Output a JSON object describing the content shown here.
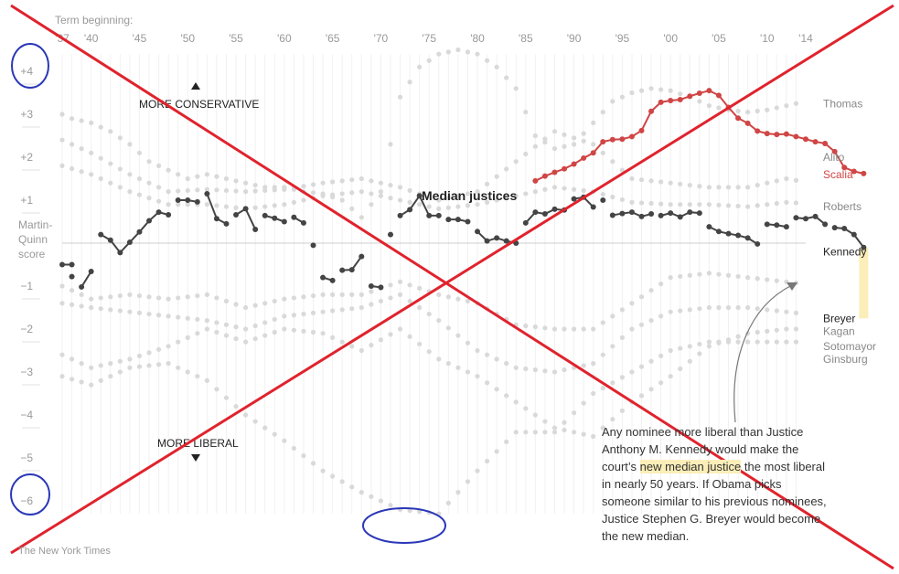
{
  "chart_data": {
    "type": "scatter",
    "title": "",
    "xlabel": "Term beginning:",
    "ylabel": "Martin-Quinn score",
    "ylabel_lines": [
      "Martin-",
      "Quinn",
      "score"
    ],
    "x_ticks": [
      "'37",
      "'40",
      "'45",
      "'50",
      "'55",
      "'60",
      "'65",
      "'70",
      "'75",
      "'80",
      "'85",
      "'90",
      "'95",
      "'00",
      "'05",
      "'10",
      "'14"
    ],
    "y_ticks": [
      {
        "value": 4,
        "label": "+4"
      },
      {
        "value": 3,
        "label": "+3"
      },
      {
        "value": 2,
        "label": "+2"
      },
      {
        "value": 1,
        "label": "+1"
      },
      {
        "value": -1,
        "label": "−1"
      },
      {
        "value": -2,
        "label": "−2"
      },
      {
        "value": -3,
        "label": "−3"
      },
      {
        "value": -4,
        "label": "−4"
      },
      {
        "value": -5,
        "label": "−5"
      },
      {
        "value": -6,
        "label": "−6"
      }
    ],
    "xlim": [
      1937,
      2014
    ],
    "ylim": [
      -6.8,
      4.6
    ],
    "grid": false,
    "series": [
      {
        "name": "Median justices",
        "color": "#444444",
        "segments": [
          {
            "x": [
              1937,
              1938
            ],
            "y": [
              -0.5,
              -0.5
            ]
          },
          {
            "x": [
              1938
            ],
            "y": [
              -0.78
            ]
          },
          {
            "x": [
              1939,
              1940
            ],
            "y": [
              -1.02,
              -0.66
            ]
          },
          {
            "x": [
              1941,
              1942,
              1943,
              1944,
              1945,
              1946,
              1947,
              1948
            ],
            "y": [
              0.2,
              0.07,
              -0.22,
              0.02,
              0.26,
              0.52,
              0.72,
              0.66
            ]
          },
          {
            "x": [
              1949,
              1950,
              1951
            ],
            "y": [
              1.0,
              1.0,
              0.96
            ]
          },
          {
            "x": [
              1952,
              1953,
              1954
            ],
            "y": [
              1.15,
              0.57,
              0.45
            ]
          },
          {
            "x": [
              1955,
              1956,
              1957
            ],
            "y": [
              0.66,
              0.8,
              0.32
            ]
          },
          {
            "x": [
              1958,
              1959,
              1960
            ],
            "y": [
              0.64,
              0.58,
              0.5
            ]
          },
          {
            "x": [
              1961,
              1962
            ],
            "y": [
              0.6,
              0.47
            ]
          },
          {
            "x": [
              1963
            ],
            "y": [
              -0.05
            ]
          },
          {
            "x": [
              1964,
              1965
            ],
            "y": [
              -0.8,
              -0.87
            ]
          },
          {
            "x": [
              1966,
              1967,
              1968
            ],
            "y": [
              -0.63,
              -0.62,
              -0.31
            ]
          },
          {
            "x": [
              1969,
              1970
            ],
            "y": [
              -1.0,
              -1.03
            ]
          },
          {
            "x": [
              1971
            ],
            "y": [
              0.2
            ]
          },
          {
            "x": [
              1972,
              1973,
              1974,
              1975,
              1976
            ],
            "y": [
              0.64,
              0.78,
              1.1,
              0.64,
              0.64
            ]
          },
          {
            "x": [
              1977,
              1978,
              1979
            ],
            "y": [
              0.55,
              0.55,
              0.5
            ]
          },
          {
            "x": [
              1980,
              1981,
              1982,
              1983,
              1984
            ],
            "y": [
              0.27,
              0.05,
              0.12,
              0.05,
              0.0
            ]
          },
          {
            "x": [
              1985,
              1986,
              1987,
              1988,
              1989
            ],
            "y": [
              0.47,
              0.72,
              0.68,
              0.79,
              0.77
            ]
          },
          {
            "x": [
              1990,
              1991,
              1992
            ],
            "y": [
              1.03,
              1.07,
              0.84
            ]
          },
          {
            "x": [
              1993
            ],
            "y": [
              1.0
            ]
          },
          {
            "x": [
              1994,
              1995,
              1996,
              1997,
              1998
            ],
            "y": [
              0.65,
              0.69,
              0.72,
              0.62,
              0.68
            ]
          },
          {
            "x": [
              1999,
              2000,
              2001,
              2002,
              2003
            ],
            "y": [
              0.64,
              0.7,
              0.61,
              0.72,
              0.7
            ]
          },
          {
            "x": [
              2004,
              2005,
              2006,
              2007,
              2008,
              2009
            ],
            "y": [
              0.38,
              0.27,
              0.22,
              0.18,
              0.12,
              -0.02
            ]
          },
          {
            "x": [
              2010,
              2011,
              2012
            ],
            "y": [
              0.44,
              0.42,
              0.38
            ]
          },
          {
            "x": [
              2013,
              2014,
              2015,
              2016
            ],
            "y": [
              0.59,
              0.57,
              0.62,
              0.44
            ]
          },
          {
            "x": [
              2017,
              2018,
              2019,
              2020
            ],
            "y": [
              0.36,
              0.34,
              0.2,
              -0.1
            ]
          }
        ]
      },
      {
        "name": "Scalia",
        "color": "#d04545",
        "segments": [
          {
            "x": [
              1986,
              1987,
              1988,
              1989,
              1990,
              1991,
              1992,
              1993,
              1994,
              1995,
              1996,
              1997,
              1998,
              1999,
              2000,
              2001,
              2002,
              2003,
              2004,
              2005,
              2006,
              2007,
              2008,
              2009,
              2010,
              2011,
              2012,
              2013,
              2014,
              2015,
              2016,
              2017,
              2018,
              2019,
              2020
            ],
            "y": [
              1.45,
              1.56,
              1.65,
              1.73,
              1.84,
              1.98,
              2.1,
              2.36,
              2.41,
              2.42,
              2.48,
              2.62,
              3.07,
              3.28,
              3.32,
              3.34,
              3.42,
              3.49,
              3.55,
              3.44,
              3.16,
              2.91,
              2.79,
              2.61,
              2.55,
              2.53,
              2.54,
              2.48,
              2.42,
              2.36,
              2.32,
              2.13,
              1.76,
              1.67,
              1.62
            ]
          }
        ]
      }
    ],
    "gray_bands_upper": [
      {
        "x": [
          1937,
          1938,
          1940,
          1942,
          1944,
          1946,
          1948,
          1950,
          1952,
          1954,
          1956,
          1958,
          1960,
          1962,
          1964,
          1966,
          1968,
          1970,
          1972,
          1974,
          1976,
          1978,
          1980,
          1982,
          1984,
          1986,
          1988,
          1990,
          1992,
          1994,
          1996,
          1998,
          2000,
          2002,
          2004,
          2006,
          2008,
          2010,
          2012,
          2014,
          2016,
          2018,
          2020
        ],
        "y": [
          3.0,
          2.9,
          2.8,
          2.6,
          2.3,
          1.9,
          1.7,
          1.5,
          1.6,
          1.5,
          1.4,
          1.3,
          1.3,
          1.2,
          1.15,
          1.0,
          0.6,
          1.2,
          3.4,
          4.1,
          4.4,
          4.5,
          4.4,
          4.1,
          3.6,
          2.5,
          2.2,
          2.3,
          2.8,
          3.3,
          3.5,
          3.6,
          3.55,
          3.4,
          3.2,
          3.1,
          3.05,
          3.1,
          3.2,
          3.3,
          3.3,
          3.35,
          3.2
        ]
      },
      {
        "x": [
          1937,
          1940,
          1944,
          1948,
          1952,
          1956,
          1960,
          1964,
          1968,
          1972,
          1976,
          1980,
          1984,
          1988,
          1992,
          1996,
          2000,
          2004,
          2008,
          2012,
          2016,
          2020
        ],
        "y": [
          2.4,
          2.1,
          1.6,
          1.2,
          1.25,
          1.2,
          1.25,
          1.4,
          1.5,
          1.3,
          1.0,
          1.2,
          1.9,
          2.6,
          2.3,
          1.5,
          1.4,
          1.3,
          1.3,
          1.5,
          1.35,
          1.2
        ]
      },
      {
        "x": [
          1937,
          1940,
          1944,
          1948,
          1952,
          1956,
          1960,
          1964,
          1968,
          1972,
          1976,
          1980,
          1984,
          1988,
          1992,
          1996,
          2000,
          2004,
          2008,
          2012,
          2016,
          2020
        ],
        "y": [
          1.8,
          1.6,
          1.2,
          0.9,
          0.9,
          0.8,
          0.9,
          1.1,
          1.2,
          1.0,
          0.8,
          0.9,
          1.1,
          1.3,
          1.2,
          0.95,
          0.9,
          0.9,
          0.85,
          0.95,
          0.9,
          0.85
        ]
      }
    ],
    "gray_bands_lower": [
      {
        "x": [
          1937,
          1940,
          1944,
          1948,
          1952,
          1956,
          1960,
          1964,
          1968,
          1972,
          1976,
          1980,
          1984,
          1988,
          1992,
          1996,
          2000,
          2004,
          2008,
          2012,
          2016,
          2020
        ],
        "y": [
          -1.4,
          -1.5,
          -1.6,
          -1.7,
          -1.8,
          -2.0,
          -1.7,
          -1.6,
          -1.5,
          -1.2,
          -1.8,
          -2.5,
          -2.9,
          -3.0,
          -2.8,
          -2.0,
          -1.6,
          -1.5,
          -1.5,
          -1.6,
          -1.7,
          -1.75
        ]
      },
      {
        "x": [
          1937,
          1940,
          1944,
          1948,
          1952,
          1956,
          1960,
          1964,
          1968,
          1972,
          1976,
          1980,
          1984,
          1988,
          1992,
          1996,
          2000,
          2004,
          2008,
          2012,
          2016,
          2020
        ],
        "y": [
          -2.6,
          -2.9,
          -2.7,
          -2.4,
          -2.0,
          -2.3,
          -2.0,
          -2.1,
          -2.5,
          -2.0,
          -2.7,
          -3.1,
          -3.7,
          -4.3,
          -4.5,
          -3.7,
          -3.1,
          -2.4,
          -2.1,
          -2.0,
          -2.0,
          -2.05
        ]
      },
      {
        "x": [
          1937,
          1940,
          1944,
          1948,
          1952,
          1956,
          1960,
          1964,
          1968,
          1972,
          1976,
          1980,
          1984,
          1988,
          1992,
          1996,
          2000,
          2004,
          2008,
          2012,
          2016,
          2020
        ],
        "y": [
          -3.1,
          -3.3,
          -2.9,
          -2.8,
          -3.2,
          -4.0,
          -4.6,
          -5.3,
          -5.8,
          -6.2,
          -6.3,
          -5.3,
          -4.4,
          -4.4,
          -3.5,
          -3.0,
          -2.5,
          -2.3,
          -2.3,
          -2.3,
          -2.3,
          -2.45
        ]
      },
      {
        "x": [
          1937,
          1940,
          1944,
          1948,
          1952,
          1956,
          1960,
          1964,
          1968,
          1972,
          1976,
          1980,
          1984,
          1988,
          1992,
          1996,
          2000,
          2004,
          2008,
          2012,
          2016,
          2020
        ],
        "y": [
          -1.0,
          -1.3,
          -1.2,
          -1.3,
          -1.2,
          -1.5,
          -1.3,
          -1.2,
          -1.2,
          -0.9,
          -1.2,
          -1.4,
          -1.9,
          -2.0,
          -2.0,
          -1.4,
          -0.8,
          -0.7,
          -0.8,
          -0.9,
          -1.0,
          -1.4
        ]
      }
    ],
    "highlight_band": {
      "x": 2020,
      "y": [
        -0.1,
        -1.75
      ],
      "color": "#fbeeb8"
    }
  },
  "labels": {
    "more_conservative": "MORE CONSERVATIVE",
    "more_liberal": "MORE LIBERAL",
    "median_justices": "Median justices",
    "justices": [
      {
        "name": "Thomas",
        "y": 3.25,
        "color": "#888888"
      },
      {
        "name": "Alito",
        "y": 2.0,
        "color": "#888888"
      },
      {
        "name": "Scalia",
        "y": 1.6,
        "color": "#d04545"
      },
      {
        "name": "Roberts",
        "y": 0.85,
        "color": "#888888"
      },
      {
        "name": "Kennedy",
        "y": -0.2,
        "color": "#222222"
      },
      {
        "name": "Breyer",
        "y": -1.75,
        "color": "#222222"
      },
      {
        "name": "Kagan",
        "y": -2.05,
        "color": "#888888"
      },
      {
        "name": "Sotomayor",
        "y": -2.4,
        "color": "#888888"
      },
      {
        "name": "Ginsburg",
        "y": -2.7,
        "color": "#888888"
      }
    ]
  },
  "annotation": {
    "before": "Any nominee more liberal than Justice Anthony M. Kennedy would make the court’s ",
    "highlight": "new median justice",
    "after": " the most liberal in nearly 50 years. If Obama picks someone similar to his previous nominees, Justice Stephen G. Breyer would become the new median."
  },
  "credit": "The New York Times",
  "colors": {
    "markup_red": "#e0232d",
    "markup_blue": "#2a37b8"
  }
}
